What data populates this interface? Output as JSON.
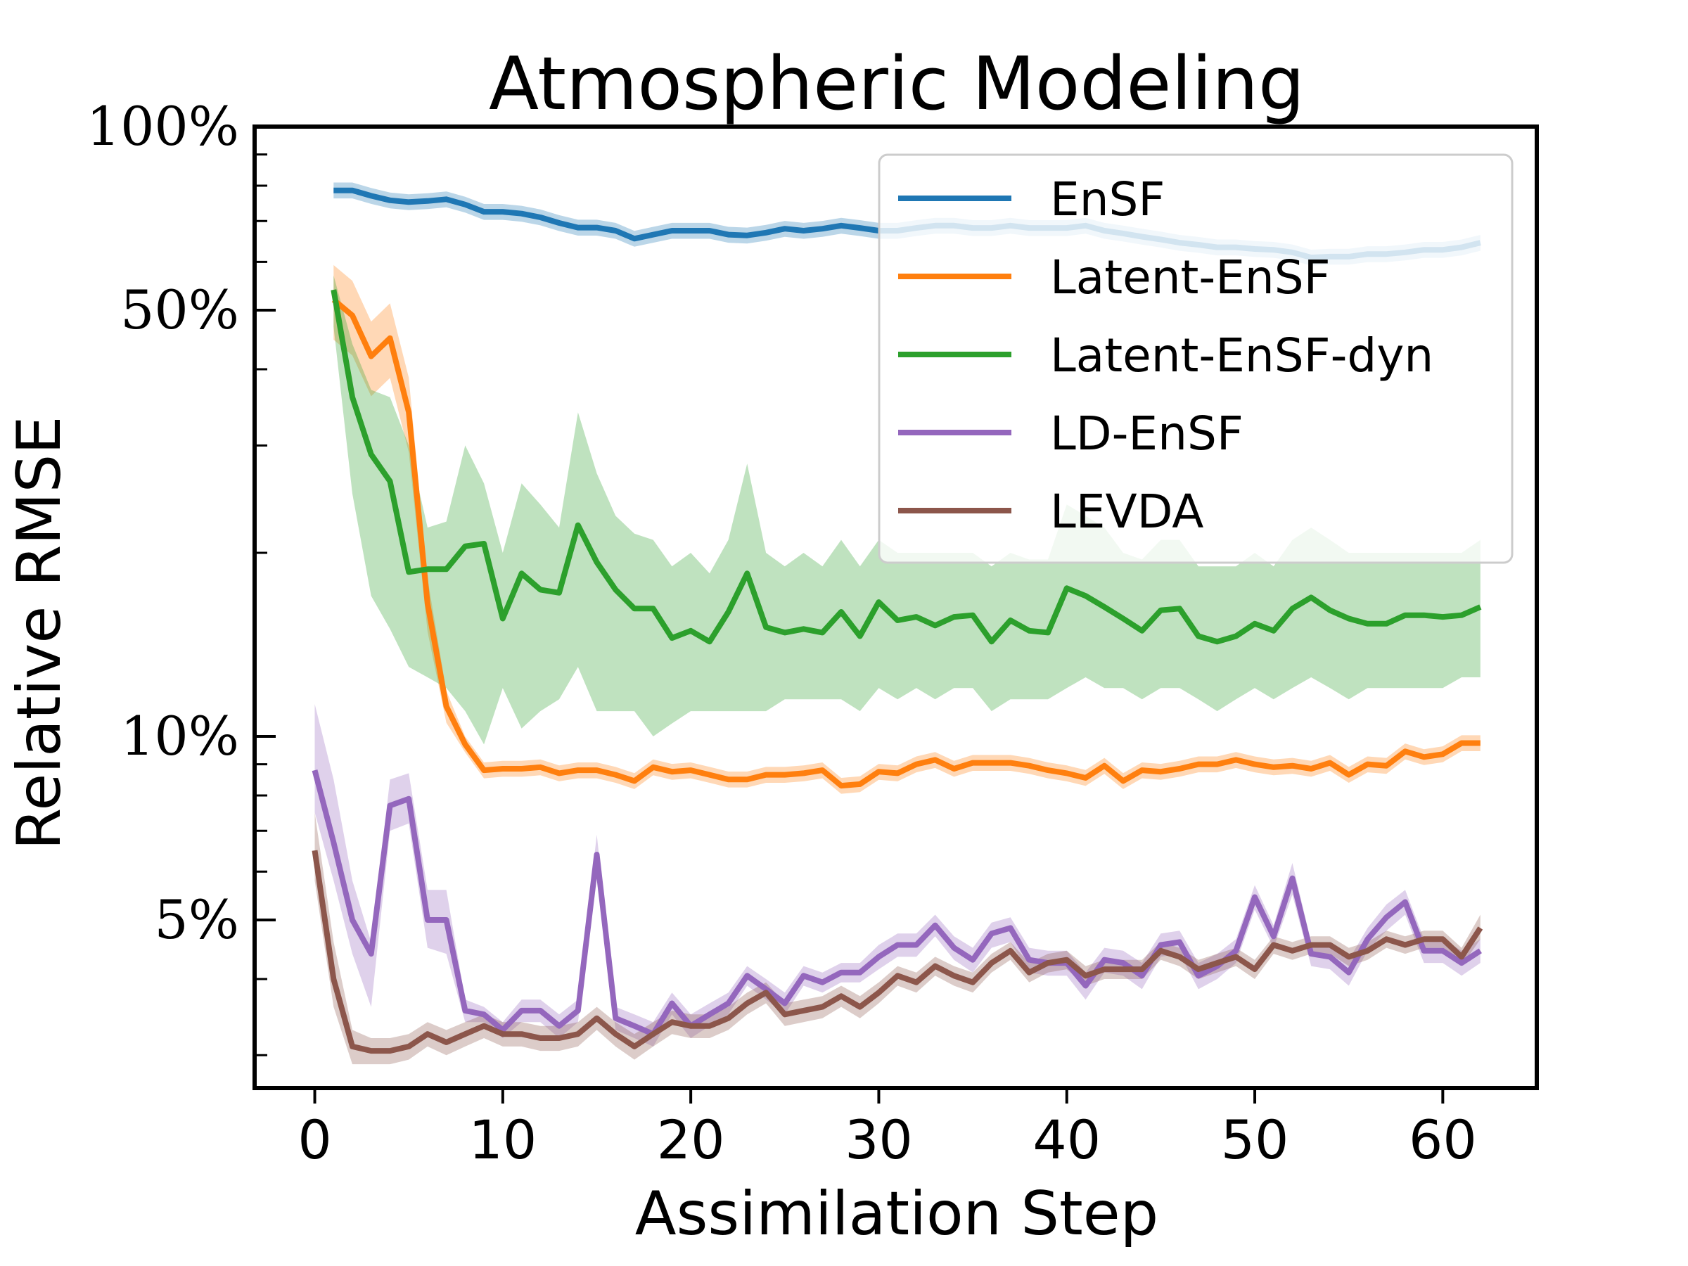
{
  "chart_data": {
    "type": "line",
    "title": "Atmospheric Modeling",
    "xlabel": "Assimilation Step",
    "ylabel": "Relative RMSE",
    "yscale": "log",
    "xlim": [
      -3.2,
      65
    ],
    "ylim": [
      0.0265,
      1.0
    ],
    "x_ticks": [
      0,
      10,
      20,
      30,
      40,
      50,
      60
    ],
    "x_tick_labels": [
      "0",
      "10",
      "20",
      "30",
      "40",
      "50",
      "60"
    ],
    "y_ticks": [
      1.0,
      0.5,
      0.1,
      0.05
    ],
    "y_tick_labels": [
      "100%",
      "50%",
      "10%",
      "5%"
    ],
    "y_minor_ticks": [
      0.9,
      0.8,
      0.7,
      0.6,
      0.4,
      0.3,
      0.2,
      0.09,
      0.08,
      0.07,
      0.06,
      0.04,
      0.03
    ],
    "legend": {
      "position": "top-right"
    },
    "series": [
      {
        "name": "EnSF",
        "color": "#1f77b4",
        "x": [
          1,
          2,
          3,
          4,
          5,
          6,
          7,
          8,
          9,
          10,
          11,
          12,
          13,
          14,
          15,
          16,
          17,
          18,
          19,
          20,
          21,
          22,
          23,
          24,
          25,
          26,
          27,
          28,
          29,
          30,
          31,
          32,
          33,
          34,
          35,
          36,
          37,
          38,
          39,
          40,
          41,
          42,
          43,
          44,
          45,
          46,
          47,
          48,
          49,
          50,
          51,
          52,
          53,
          54,
          55,
          56,
          57,
          58,
          59,
          60,
          61,
          62
        ],
        "values": [
          0.786,
          0.786,
          0.77,
          0.757,
          0.752,
          0.755,
          0.76,
          0.745,
          0.725,
          0.725,
          0.72,
          0.71,
          0.695,
          0.683,
          0.683,
          0.675,
          0.655,
          0.665,
          0.675,
          0.675,
          0.675,
          0.665,
          0.663,
          0.67,
          0.68,
          0.675,
          0.68,
          0.688,
          0.682,
          0.675,
          0.675,
          0.682,
          0.688,
          0.688,
          0.682,
          0.682,
          0.688,
          0.682,
          0.682,
          0.682,
          0.688,
          0.675,
          0.668,
          0.66,
          0.653,
          0.645,
          0.64,
          0.634,
          0.634,
          0.63,
          0.628,
          0.622,
          0.61,
          0.612,
          0.612,
          0.618,
          0.618,
          0.622,
          0.628,
          0.628,
          0.634,
          0.645
        ],
        "band_halfwidth_pct": 3
      },
      {
        "name": "Latent-EnSF",
        "color": "#ff7f0e",
        "x": [
          1,
          2,
          3,
          4,
          5,
          6,
          7,
          8,
          9,
          10,
          11,
          12,
          13,
          14,
          15,
          16,
          17,
          18,
          19,
          20,
          21,
          22,
          23,
          24,
          25,
          26,
          27,
          28,
          29,
          30,
          31,
          32,
          33,
          34,
          35,
          36,
          37,
          38,
          39,
          40,
          41,
          42,
          43,
          44,
          45,
          46,
          47,
          48,
          49,
          50,
          51,
          52,
          53,
          54,
          55,
          56,
          57,
          58,
          59,
          60,
          61,
          62
        ],
        "values": [
          0.52,
          0.49,
          0.42,
          0.45,
          0.34,
          0.165,
          0.112,
          0.097,
          0.088,
          0.0885,
          0.0885,
          0.089,
          0.087,
          0.088,
          0.088,
          0.0865,
          0.0845,
          0.089,
          0.0875,
          0.088,
          0.0865,
          0.085,
          0.085,
          0.0865,
          0.0865,
          0.087,
          0.088,
          0.083,
          0.0835,
          0.0875,
          0.087,
          0.09,
          0.0915,
          0.0885,
          0.0905,
          0.0905,
          0.0905,
          0.0895,
          0.088,
          0.087,
          0.0855,
          0.0895,
          0.0845,
          0.088,
          0.0875,
          0.0885,
          0.09,
          0.09,
          0.0915,
          0.09,
          0.089,
          0.0895,
          0.0885,
          0.0905,
          0.0865,
          0.09,
          0.0895,
          0.0945,
          0.0925,
          0.0935,
          0.0975,
          0.0975
        ],
        "band_halfwidth_pct": [
          14,
          14,
          14,
          14,
          14,
          10,
          6,
          3,
          3,
          3,
          3,
          3,
          3,
          3,
          3,
          3,
          3,
          3,
          3,
          3,
          3,
          3,
          3,
          3,
          3,
          3,
          3,
          3,
          3,
          3,
          3,
          3,
          3,
          3,
          3,
          3,
          3,
          3,
          3,
          3,
          3,
          3,
          3,
          3,
          3,
          3,
          3,
          3,
          3,
          3,
          3,
          3,
          3,
          3,
          3,
          3,
          3,
          3,
          3,
          3,
          3,
          3
        ]
      },
      {
        "name": "Latent-EnSF-dyn",
        "color": "#2ca02c",
        "x": [
          1,
          2,
          3,
          4,
          5,
          6,
          7,
          8,
          9,
          10,
          11,
          12,
          13,
          14,
          15,
          16,
          17,
          18,
          19,
          20,
          21,
          22,
          23,
          24,
          25,
          26,
          27,
          28,
          29,
          30,
          31,
          32,
          33,
          34,
          35,
          36,
          37,
          38,
          39,
          40,
          41,
          42,
          43,
          44,
          45,
          46,
          47,
          48,
          49,
          50,
          51,
          52,
          53,
          54,
          55,
          56,
          57,
          58,
          59,
          60,
          61,
          62
        ],
        "values": [
          0.54,
          0.36,
          0.29,
          0.262,
          0.186,
          0.188,
          0.188,
          0.205,
          0.207,
          0.156,
          0.185,
          0.174,
          0.172,
          0.222,
          0.193,
          0.174,
          0.162,
          0.162,
          0.145,
          0.149,
          0.143,
          0.16,
          0.185,
          0.151,
          0.148,
          0.15,
          0.148,
          0.16,
          0.146,
          0.166,
          0.155,
          0.157,
          0.152,
          0.157,
          0.158,
          0.143,
          0.155,
          0.149,
          0.148,
          0.175,
          0.17,
          0.163,
          0.156,
          0.149,
          0.161,
          0.162,
          0.146,
          0.143,
          0.146,
          0.153,
          0.149,
          0.162,
          0.169,
          0.161,
          0.156,
          0.153,
          0.153,
          0.158,
          0.158,
          0.157,
          0.158,
          0.163
        ],
        "band_lower": [
          0.47,
          0.25,
          0.17,
          0.15,
          0.13,
          0.125,
          0.12,
          0.11,
          0.097,
          0.12,
          0.103,
          0.11,
          0.115,
          0.13,
          0.11,
          0.11,
          0.11,
          0.1,
          0.105,
          0.11,
          0.11,
          0.11,
          0.11,
          0.11,
          0.115,
          0.115,
          0.115,
          0.115,
          0.11,
          0.12,
          0.115,
          0.12,
          0.115,
          0.12,
          0.12,
          0.11,
          0.115,
          0.115,
          0.115,
          0.12,
          0.125,
          0.12,
          0.12,
          0.115,
          0.12,
          0.12,
          0.115,
          0.11,
          0.115,
          0.12,
          0.115,
          0.12,
          0.125,
          0.12,
          0.115,
          0.12,
          0.12,
          0.12,
          0.12,
          0.12,
          0.125,
          0.125
        ],
        "band_upper": [
          0.57,
          0.44,
          0.37,
          0.36,
          0.3,
          0.22,
          0.225,
          0.3,
          0.26,
          0.2,
          0.26,
          0.24,
          0.22,
          0.34,
          0.27,
          0.23,
          0.215,
          0.21,
          0.19,
          0.2,
          0.185,
          0.21,
          0.28,
          0.2,
          0.19,
          0.2,
          0.19,
          0.21,
          0.19,
          0.21,
          0.2,
          0.2,
          0.2,
          0.2,
          0.2,
          0.19,
          0.2,
          0.195,
          0.195,
          0.24,
          0.23,
          0.22,
          0.2,
          0.195,
          0.21,
          0.21,
          0.19,
          0.19,
          0.19,
          0.2,
          0.19,
          0.21,
          0.22,
          0.21,
          0.2,
          0.2,
          0.2,
          0.2,
          0.2,
          0.2,
          0.2,
          0.21
        ]
      },
      {
        "name": "LD-EnSF",
        "color": "#9467bd",
        "x": [
          0,
          1,
          2,
          3,
          4,
          5,
          6,
          7,
          8,
          9,
          10,
          11,
          12,
          13,
          14,
          15,
          16,
          17,
          18,
          19,
          20,
          21,
          22,
          23,
          24,
          25,
          26,
          27,
          28,
          29,
          30,
          31,
          32,
          33,
          34,
          35,
          36,
          37,
          38,
          39,
          40,
          41,
          42,
          43,
          44,
          45,
          46,
          47,
          48,
          49,
          50,
          51,
          52,
          53,
          54,
          55,
          56,
          57,
          58,
          59,
          60,
          61,
          62
        ],
        "values": [
          0.088,
          0.067,
          0.05,
          0.044,
          0.077,
          0.079,
          0.05,
          0.05,
          0.0355,
          0.035,
          0.033,
          0.0355,
          0.0355,
          0.0335,
          0.0355,
          0.064,
          0.0345,
          0.0335,
          0.0325,
          0.0365,
          0.0335,
          0.035,
          0.0365,
          0.0405,
          0.0385,
          0.0365,
          0.0405,
          0.0395,
          0.041,
          0.041,
          0.0435,
          0.0455,
          0.0455,
          0.049,
          0.045,
          0.043,
          0.0475,
          0.0485,
          0.043,
          0.0425,
          0.0425,
          0.039,
          0.043,
          0.0425,
          0.0405,
          0.0455,
          0.046,
          0.0405,
          0.042,
          0.0445,
          0.0545,
          0.047,
          0.0585,
          0.044,
          0.0435,
          0.041,
          0.0465,
          0.0505,
          0.0535,
          0.0445,
          0.0445,
          0.0425,
          0.0445
        ],
        "band_lower": [
          0.075,
          0.058,
          0.044,
          0.036,
          0.07,
          0.072,
          0.045,
          0.044,
          0.034,
          0.034,
          0.032,
          0.034,
          0.034,
          0.032,
          0.034,
          0.06,
          0.033,
          0.032,
          0.031,
          0.035,
          0.032,
          0.0335,
          0.035,
          0.039,
          0.037,
          0.035,
          0.039,
          0.038,
          0.0395,
          0.0395,
          0.0415,
          0.0435,
          0.0435,
          0.047,
          0.043,
          0.041,
          0.045,
          0.046,
          0.041,
          0.0405,
          0.0405,
          0.037,
          0.041,
          0.0405,
          0.0385,
          0.0435,
          0.044,
          0.0385,
          0.04,
          0.0425,
          0.052,
          0.045,
          0.055,
          0.042,
          0.0415,
          0.039,
          0.0445,
          0.048,
          0.051,
          0.0425,
          0.0425,
          0.0405,
          0.0425
        ],
        "band_upper": [
          0.113,
          0.085,
          0.058,
          0.046,
          0.085,
          0.087,
          0.056,
          0.056,
          0.037,
          0.036,
          0.034,
          0.037,
          0.037,
          0.035,
          0.037,
          0.069,
          0.036,
          0.035,
          0.034,
          0.038,
          0.035,
          0.0365,
          0.038,
          0.042,
          0.04,
          0.038,
          0.042,
          0.041,
          0.0425,
          0.0425,
          0.0455,
          0.0475,
          0.0475,
          0.051,
          0.047,
          0.045,
          0.0495,
          0.0505,
          0.045,
          0.0445,
          0.0445,
          0.041,
          0.045,
          0.0445,
          0.0425,
          0.0475,
          0.048,
          0.0425,
          0.044,
          0.0465,
          0.057,
          0.049,
          0.062,
          0.046,
          0.0455,
          0.043,
          0.0485,
          0.053,
          0.056,
          0.0465,
          0.0465,
          0.0445,
          0.0465
        ]
      },
      {
        "name": "LEVDA",
        "color": "#8c564b",
        "x": [
          0,
          1,
          2,
          3,
          4,
          5,
          6,
          7,
          8,
          9,
          10,
          11,
          12,
          13,
          14,
          15,
          16,
          17,
          18,
          19,
          20,
          21,
          22,
          23,
          24,
          25,
          26,
          27,
          28,
          29,
          30,
          31,
          32,
          33,
          34,
          35,
          36,
          37,
          38,
          39,
          40,
          41,
          42,
          43,
          44,
          45,
          46,
          47,
          48,
          49,
          50,
          51,
          52,
          53,
          54,
          55,
          56,
          57,
          58,
          59,
          60,
          61,
          62
        ],
        "values": [
          0.065,
          0.04,
          0.031,
          0.0305,
          0.0305,
          0.031,
          0.0325,
          0.0315,
          0.0325,
          0.0335,
          0.0325,
          0.0325,
          0.032,
          0.032,
          0.0325,
          0.0345,
          0.0325,
          0.031,
          0.0325,
          0.034,
          0.0335,
          0.0335,
          0.0345,
          0.0365,
          0.038,
          0.035,
          0.0355,
          0.036,
          0.0375,
          0.036,
          0.038,
          0.0405,
          0.0395,
          0.042,
          0.0405,
          0.0395,
          0.0425,
          0.0445,
          0.041,
          0.0425,
          0.043,
          0.0405,
          0.0415,
          0.0415,
          0.0415,
          0.0445,
          0.0435,
          0.0415,
          0.0425,
          0.0435,
          0.0415,
          0.0455,
          0.0445,
          0.0455,
          0.0455,
          0.0435,
          0.0445,
          0.0465,
          0.0455,
          0.0465,
          0.0465,
          0.0435,
          0.0485
        ],
        "band_lower": [
          0.058,
          0.036,
          0.029,
          0.029,
          0.029,
          0.0295,
          0.031,
          0.03,
          0.031,
          0.032,
          0.031,
          0.031,
          0.0305,
          0.0305,
          0.031,
          0.033,
          0.031,
          0.0295,
          0.031,
          0.0325,
          0.032,
          0.032,
          0.033,
          0.035,
          0.0365,
          0.0335,
          0.034,
          0.0345,
          0.036,
          0.0345,
          0.0365,
          0.039,
          0.038,
          0.0405,
          0.039,
          0.038,
          0.041,
          0.043,
          0.0395,
          0.041,
          0.0415,
          0.039,
          0.04,
          0.04,
          0.04,
          0.043,
          0.042,
          0.04,
          0.041,
          0.042,
          0.04,
          0.044,
          0.043,
          0.044,
          0.044,
          0.042,
          0.043,
          0.045,
          0.044,
          0.045,
          0.045,
          0.042,
          0.0465
        ],
        "band_upper": [
          0.075,
          0.046,
          0.033,
          0.032,
          0.032,
          0.0325,
          0.034,
          0.033,
          0.034,
          0.035,
          0.034,
          0.034,
          0.0335,
          0.0335,
          0.034,
          0.036,
          0.034,
          0.0325,
          0.034,
          0.0355,
          0.035,
          0.035,
          0.036,
          0.038,
          0.0395,
          0.0365,
          0.037,
          0.0375,
          0.039,
          0.0375,
          0.0395,
          0.042,
          0.041,
          0.0435,
          0.042,
          0.041,
          0.044,
          0.046,
          0.0425,
          0.044,
          0.0445,
          0.042,
          0.043,
          0.043,
          0.043,
          0.046,
          0.045,
          0.043,
          0.044,
          0.045,
          0.043,
          0.047,
          0.046,
          0.047,
          0.047,
          0.045,
          0.046,
          0.048,
          0.047,
          0.048,
          0.048,
          0.045,
          0.051
        ]
      }
    ]
  }
}
